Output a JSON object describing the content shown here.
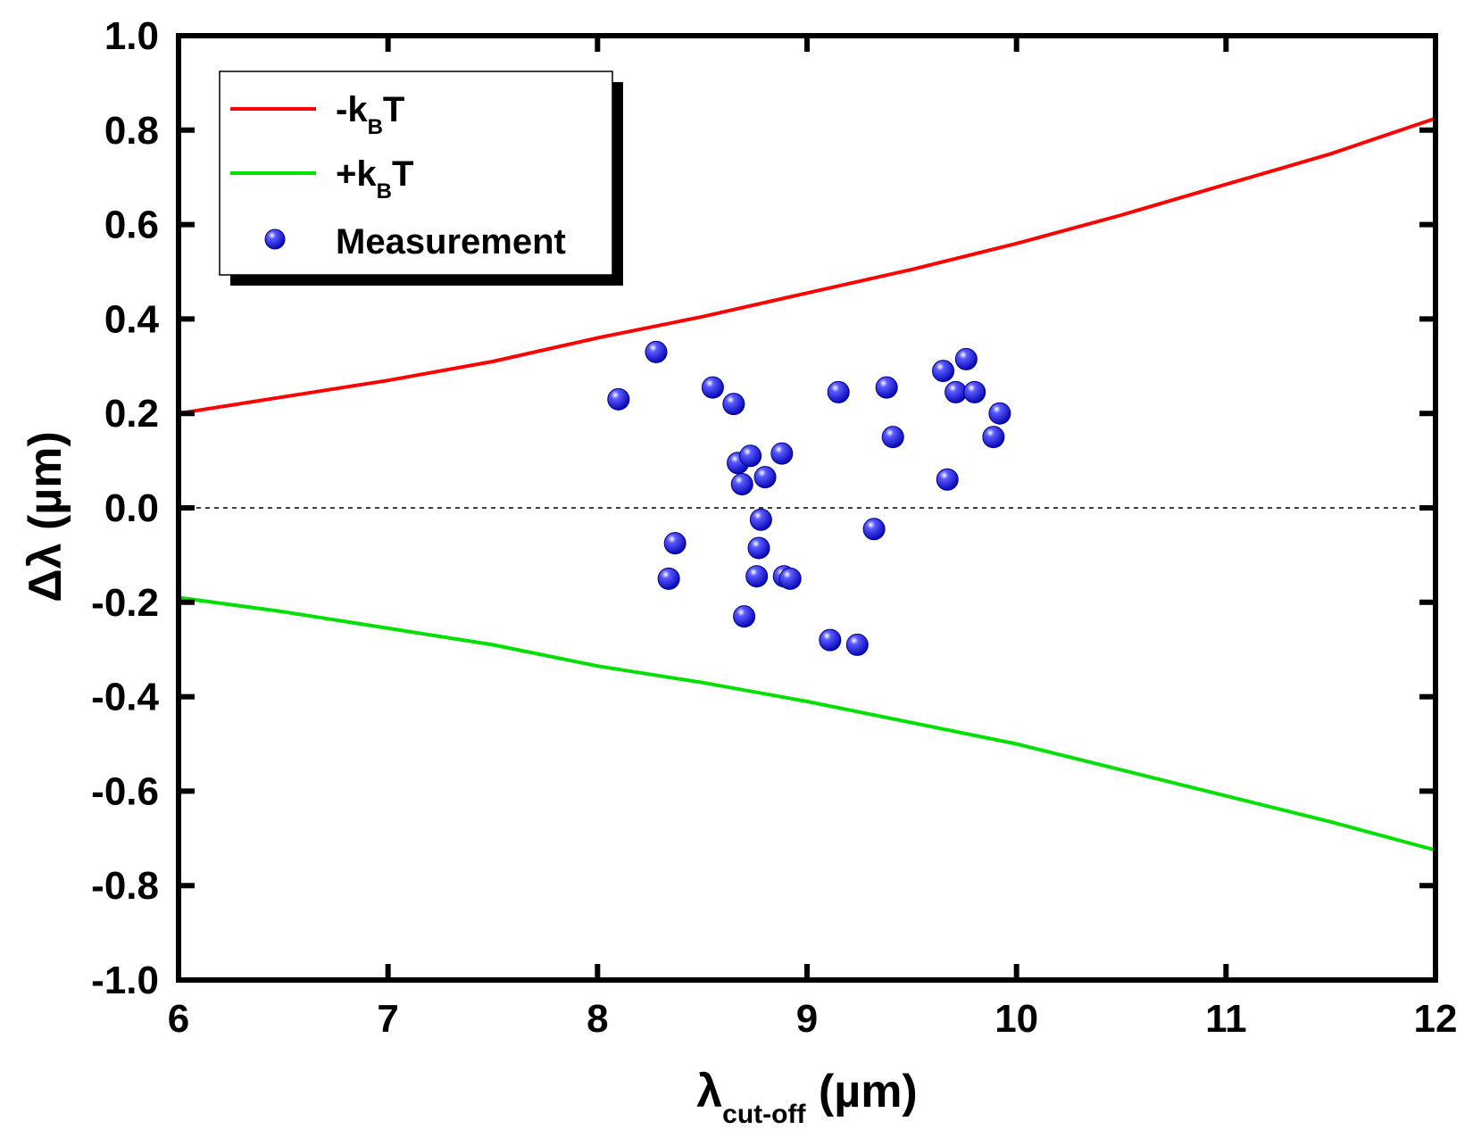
{
  "chart_data": {
    "type": "scatter",
    "xlabel": {
      "symbol": "λ",
      "sub": "cut-off",
      "unit": " (µm)"
    },
    "ylabel": "Δλ (µm)",
    "xlim": [
      6,
      12
    ],
    "ylim": [
      -1.0,
      1.0
    ],
    "x_ticks": [
      6,
      7,
      8,
      9,
      10,
      11,
      12
    ],
    "x_tick_labels": [
      "6",
      "7",
      "8",
      "9",
      "10",
      "11",
      "12"
    ],
    "y_ticks": [
      -1.0,
      -0.8,
      -0.6,
      -0.4,
      -0.2,
      0.0,
      0.2,
      0.4,
      0.6,
      0.8,
      1.0
    ],
    "y_tick_labels": [
      "-1.0",
      "-0.8",
      "-0.6",
      "-0.4",
      "-0.2",
      "0.0",
      "0.2",
      "0.4",
      "0.6",
      "0.8",
      "1.0"
    ],
    "grid": false,
    "legend_position": "top-left",
    "reference_line": {
      "y": 0.0,
      "style": "dashed"
    },
    "series": [
      {
        "type": "line",
        "label_main": "-k",
        "label_sub": "B",
        "label_tail": "T",
        "color": "#ff0000",
        "x": [
          6.0,
          6.5,
          7.0,
          7.5,
          8.0,
          8.5,
          9.0,
          9.5,
          10.0,
          10.5,
          11.0,
          11.5,
          12.0
        ],
        "y": [
          0.2,
          0.235,
          0.27,
          0.31,
          0.36,
          0.405,
          0.455,
          0.505,
          0.56,
          0.62,
          0.685,
          0.75,
          0.825
        ]
      },
      {
        "type": "line",
        "label_main": "+k",
        "label_sub": "B",
        "label_tail": "T",
        "color": "#00e000",
        "x": [
          6.0,
          6.5,
          7.0,
          7.5,
          8.0,
          8.5,
          9.0,
          9.5,
          10.0,
          10.5,
          11.0,
          11.5,
          12.0
        ],
        "y": [
          -0.19,
          -0.22,
          -0.255,
          -0.29,
          -0.335,
          -0.37,
          -0.41,
          -0.455,
          -0.5,
          -0.555,
          -0.61,
          -0.665,
          -0.725
        ]
      },
      {
        "type": "scatter",
        "label_main": "Measurement",
        "color": "#1a1ad8",
        "points": [
          [
            8.1,
            0.23
          ],
          [
            8.28,
            0.33
          ],
          [
            8.55,
            0.255
          ],
          [
            8.65,
            0.22
          ],
          [
            8.67,
            0.095
          ],
          [
            8.73,
            0.11
          ],
          [
            8.69,
            0.05
          ],
          [
            8.8,
            0.065
          ],
          [
            8.88,
            0.115
          ],
          [
            8.78,
            -0.025
          ],
          [
            8.77,
            -0.085
          ],
          [
            8.37,
            -0.075
          ],
          [
            8.34,
            -0.15
          ],
          [
            8.76,
            -0.145
          ],
          [
            8.89,
            -0.145
          ],
          [
            8.92,
            -0.15
          ],
          [
            8.7,
            -0.23
          ],
          [
            9.11,
            -0.28
          ],
          [
            9.24,
            -0.29
          ],
          [
            9.32,
            -0.045
          ],
          [
            9.15,
            0.245
          ],
          [
            9.38,
            0.255
          ],
          [
            9.41,
            0.15
          ],
          [
            9.65,
            0.29
          ],
          [
            9.76,
            0.315
          ],
          [
            9.71,
            0.245
          ],
          [
            9.8,
            0.245
          ],
          [
            9.92,
            0.2
          ],
          [
            9.89,
            0.15
          ],
          [
            9.67,
            0.06
          ]
        ]
      }
    ]
  }
}
